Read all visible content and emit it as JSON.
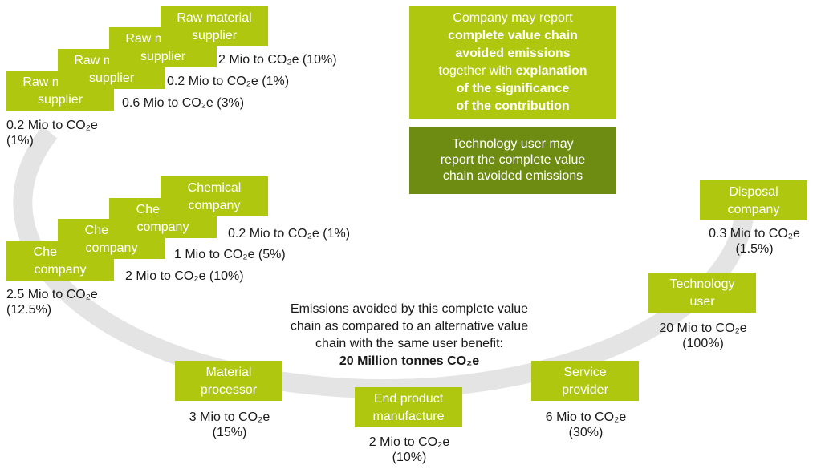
{
  "nodes": [
    {
      "label": [
        "Raw material",
        "supplier"
      ],
      "value": [
        "0.2 Mio to CO₂e",
        "(1%)"
      ]
    },
    {
      "label": [
        "Raw material",
        "supplier"
      ],
      "value": [
        "0.6 Mio to CO₂e (3%)"
      ]
    },
    {
      "label": [
        "Raw material",
        "supplier"
      ],
      "value": [
        "0.2 Mio to CO₂e (1%)"
      ]
    },
    {
      "label": [
        "Raw material",
        "supplier"
      ],
      "value": [
        "2 Mio to CO₂e (10%)"
      ]
    },
    {
      "label": [
        "Chemical",
        "company"
      ],
      "value": [
        "2.5 Mio to CO₂e",
        "(12.5%)"
      ]
    },
    {
      "label": [
        "Chemical",
        "company"
      ],
      "value": [
        "2 Mio to CO₂e (10%)"
      ]
    },
    {
      "label": [
        "Chemical",
        "company"
      ],
      "value": [
        "1 Mio to CO₂e (5%)"
      ]
    },
    {
      "label": [
        "Chemical",
        "company"
      ],
      "value": [
        "0.2 Mio to CO₂e (1%)"
      ]
    },
    {
      "label": [
        "Material",
        "processor"
      ],
      "value": [
        "3 Mio to CO₂e",
        "(15%)"
      ]
    },
    {
      "label": [
        "End product",
        "manufacture"
      ],
      "value": [
        "2 Mio to CO₂e",
        "(10%)"
      ]
    },
    {
      "label": [
        "Service",
        "provider"
      ],
      "value": [
        "6 Mio to CO₂e",
        "(30%)"
      ]
    },
    {
      "label": [
        "Technology",
        "user"
      ],
      "value": [
        "20 Mio to CO₂e",
        "(100%)"
      ]
    },
    {
      "label": [
        "Disposal",
        "company"
      ],
      "value": [
        "0.3 Mio to CO₂e",
        "(1.5%)"
      ]
    }
  ],
  "summary": {
    "lines": [
      "Emissions avoided by this complete value",
      "chain as compared to an alternative value",
      "chain with the same user benefit:"
    ],
    "highlight": "20 Million tonnes CO₂e"
  },
  "callouts": [
    {
      "lines": [
        [
          {
            "text": "Company may report",
            "bold": false
          }
        ],
        [
          {
            "text": "complete value chain",
            "bold": true
          }
        ],
        [
          {
            "text": "avoided emissions",
            "bold": true
          }
        ],
        [
          {
            "text": "together with ",
            "bold": false
          },
          {
            "text": "explanation",
            "bold": true
          }
        ],
        [
          {
            "text": "of the significance",
            "bold": true
          }
        ],
        [
          {
            "text": "of the contribution",
            "bold": true
          }
        ]
      ]
    },
    {
      "lines": [
        [
          {
            "text": "Technology user may",
            "bold": false
          }
        ],
        [
          {
            "text": "report the complete value",
            "bold": false
          }
        ],
        [
          {
            "text": "chain avoided emissions",
            "bold": false
          }
        ]
      ]
    }
  ]
}
